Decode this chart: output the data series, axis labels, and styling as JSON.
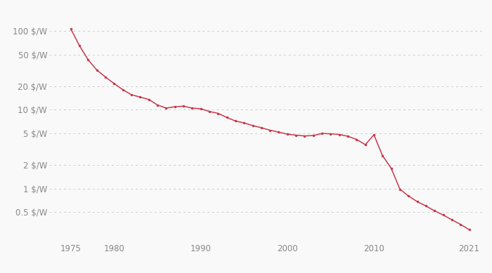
{
  "years": [
    1975,
    1976,
    1977,
    1978,
    1979,
    1980,
    1981,
    1982,
    1983,
    1984,
    1985,
    1986,
    1987,
    1988,
    1989,
    1990,
    1991,
    1992,
    1993,
    1994,
    1995,
    1996,
    1997,
    1998,
    1999,
    2000,
    2001,
    2002,
    2003,
    2004,
    2005,
    2006,
    2007,
    2008,
    2009,
    2010,
    2011,
    2012,
    2013,
    2014,
    2015,
    2016,
    2017,
    2018,
    2019,
    2020,
    2021
  ],
  "prices": [
    106.0,
    65.0,
    43.0,
    32.0,
    26.0,
    21.5,
    18.0,
    15.5,
    14.5,
    13.5,
    11.5,
    10.5,
    10.9,
    11.1,
    10.5,
    10.3,
    9.5,
    9.0,
    8.0,
    7.2,
    6.8,
    6.3,
    5.9,
    5.5,
    5.2,
    4.9,
    4.75,
    4.65,
    4.7,
    5.0,
    4.95,
    4.85,
    4.6,
    4.2,
    3.6,
    4.8,
    2.6,
    1.8,
    0.98,
    0.8,
    0.68,
    0.6,
    0.52,
    0.46,
    0.4,
    0.35,
    0.3
  ],
  "line_color": "#c9374a",
  "marker_color": "#c9374a",
  "bg_color": "#f9f9f9",
  "grid_color": "#cccccc",
  "yticks": [
    0.5,
    1,
    2,
    5,
    10,
    20,
    50,
    100
  ],
  "ytick_labels": [
    "0.5 $/W",
    "1 $/W",
    "2 $/W",
    "5 $/W",
    "10 $/W",
    "20 $/W",
    "50 $/W",
    "100 $/W"
  ],
  "xticks": [
    1975,
    1980,
    1990,
    2000,
    2010,
    2021
  ],
  "xtick_labels": [
    "1975",
    "1980",
    "1990",
    "2000",
    "2010",
    "2021"
  ],
  "xlim": [
    1972.5,
    2022.5
  ],
  "ylim": [
    0.22,
    180
  ]
}
